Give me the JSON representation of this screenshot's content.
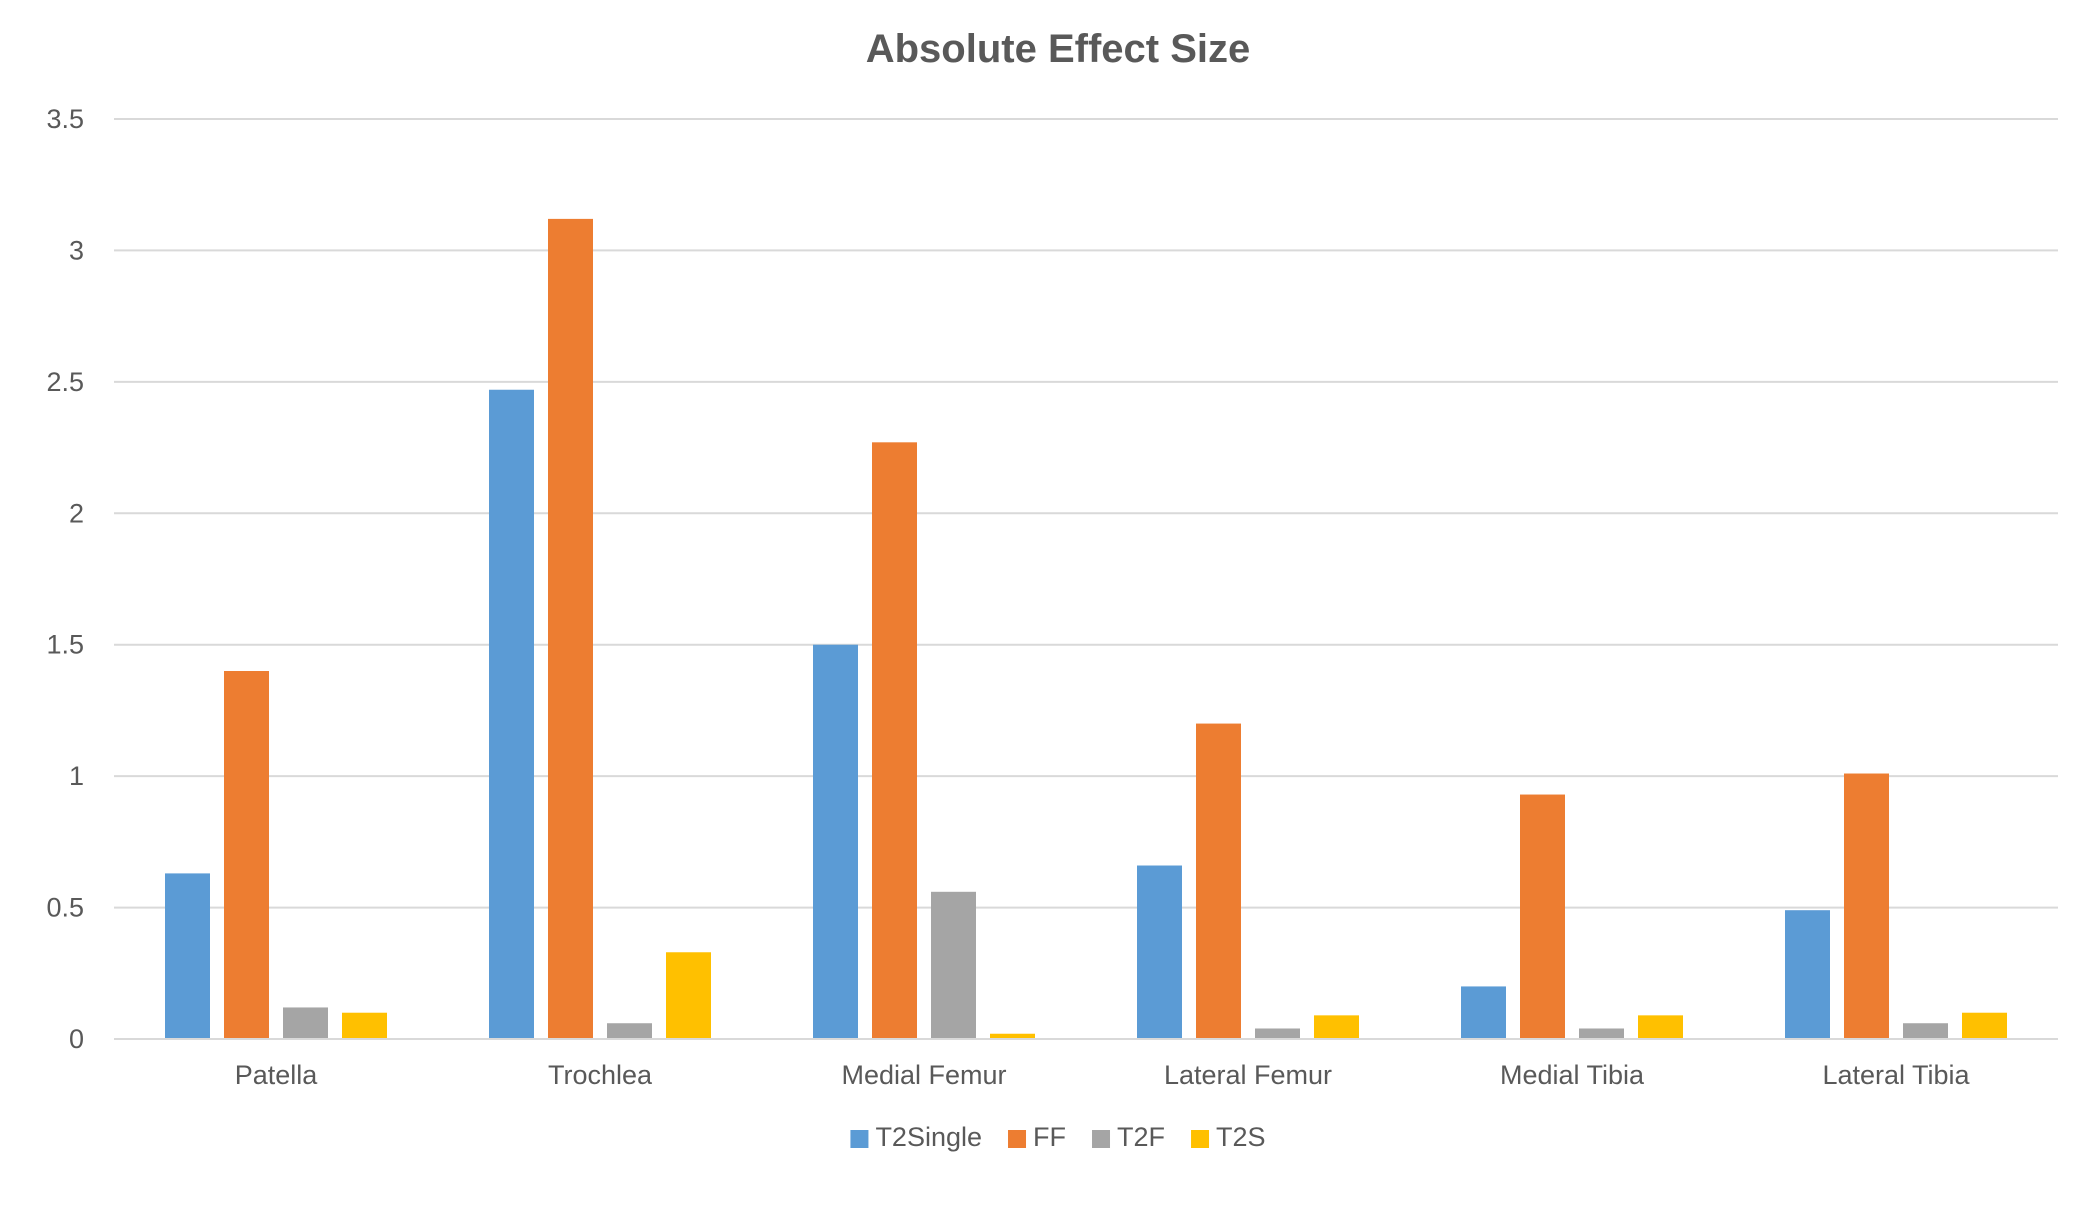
{
  "chart_data": {
    "type": "bar",
    "title": "Absolute Effect Size",
    "xlabel": "",
    "ylabel": "",
    "ylim": [
      0,
      3.5
    ],
    "yticks": [
      0,
      0.5,
      1,
      1.5,
      2,
      2.5,
      3,
      3.5
    ],
    "ytick_labels": [
      "0",
      "0.5",
      "1",
      "1.5",
      "2",
      "2.5",
      "3",
      "3.5"
    ],
    "grid": true,
    "legend_position": "bottom",
    "categories": [
      "Patella",
      "Trochlea",
      "Medial Femur",
      "Lateral Femur",
      "Medial Tibia",
      "Lateral Tibia"
    ],
    "series": [
      {
        "name": "T2Single",
        "color": "#5b9bd5",
        "values": [
          0.63,
          2.47,
          1.5,
          0.66,
          0.2,
          0.49
        ]
      },
      {
        "name": "FF",
        "color": "#ed7d31",
        "values": [
          1.4,
          3.12,
          2.27,
          1.2,
          0.93,
          1.01
        ]
      },
      {
        "name": "T2F",
        "color": "#a5a5a5",
        "values": [
          0.12,
          0.06,
          0.56,
          0.04,
          0.04,
          0.06
        ]
      },
      {
        "name": "T2S",
        "color": "#ffc000",
        "values": [
          0.1,
          0.33,
          0.02,
          0.09,
          0.09,
          0.1
        ]
      }
    ]
  }
}
